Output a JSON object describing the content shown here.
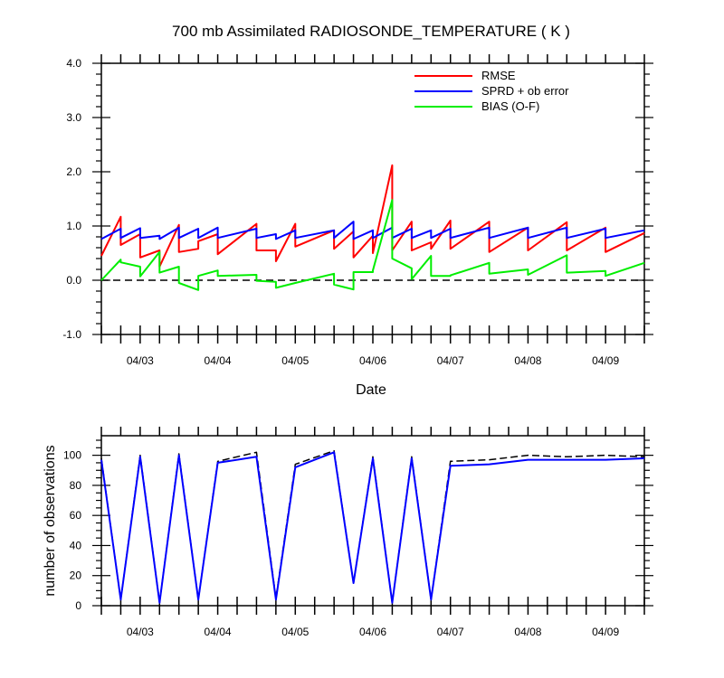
{
  "chart_data": [
    {
      "type": "line",
      "title": "700 mb Assimilated RADIOSONDE_TEMPERATURE ( K )",
      "xlabel": "Date",
      "ylabel": "",
      "ylim": [
        -1.0,
        4.0
      ],
      "xlim": [
        "04/02 12:00",
        "04/09 12:00"
      ],
      "x_tick_labels": [
        "04/03",
        "04/04",
        "04/05",
        "04/06",
        "04/07",
        "04/08",
        "04/09"
      ],
      "y_tick_labels": [
        "-1.0",
        "0.0",
        "1.0",
        "2.0",
        "3.0",
        "4.0"
      ],
      "grid": false,
      "legend": "top-right",
      "reference_line": {
        "y": 0,
        "style": "dashed",
        "color": "#000000"
      },
      "series": [
        {
          "name": "RMSE",
          "color": "#ff0000",
          "points": [
            [
              "04/02 12:00",
              0.45
            ],
            [
              "04/02 18:00",
              1.17
            ],
            [
              "04/02 18:00",
              0.65
            ],
            [
              "04/03 00:00",
              0.85
            ],
            [
              "04/03 00:00",
              0.42
            ],
            [
              "04/03 06:00",
              0.55
            ],
            [
              "04/03 06:00",
              0.25
            ],
            [
              "04/03 12:00",
              1.02
            ],
            [
              "04/03 12:00",
              0.52
            ],
            [
              "04/03 18:00",
              0.58
            ],
            [
              "04/03 18:00",
              0.72
            ],
            [
              "04/04 00:00",
              0.85
            ],
            [
              "04/04 00:00",
              0.48
            ],
            [
              "04/04 12:00",
              1.04
            ],
            [
              "04/04 12:00",
              0.55
            ],
            [
              "04/04 18:00",
              0.55
            ],
            [
              "04/04 18:00",
              0.35
            ],
            [
              "04/05 00:00",
              1.04
            ],
            [
              "04/05 00:00",
              0.62
            ],
            [
              "04/05 12:00",
              0.92
            ],
            [
              "04/05 12:00",
              0.58
            ],
            [
              "04/05 18:00",
              0.9
            ],
            [
              "04/05 18:00",
              0.42
            ],
            [
              "04/06 00:00",
              0.82
            ],
            [
              "04/06 00:00",
              0.5
            ],
            [
              "04/06 06:00",
              2.12
            ],
            [
              "04/06 06:00",
              0.55
            ],
            [
              "04/06 12:00",
              1.08
            ],
            [
              "04/06 12:00",
              0.55
            ],
            [
              "04/06 18:00",
              0.7
            ],
            [
              "04/06 18:00",
              0.58
            ],
            [
              "04/07 00:00",
              1.1
            ],
            [
              "04/07 00:00",
              0.58
            ],
            [
              "04/07 12:00",
              1.08
            ],
            [
              "04/07 12:00",
              0.52
            ],
            [
              "04/08 00:00",
              0.97
            ],
            [
              "04/08 00:00",
              0.55
            ],
            [
              "04/08 12:00",
              1.07
            ],
            [
              "04/08 12:00",
              0.55
            ],
            [
              "04/09 00:00",
              0.97
            ],
            [
              "04/09 00:00",
              0.52
            ],
            [
              "04/09 12:00",
              0.87
            ]
          ]
        },
        {
          "name": "SPRD + ob error",
          "color": "#0000ff",
          "points": [
            [
              "04/02 12:00",
              0.76
            ],
            [
              "04/02 18:00",
              0.95
            ],
            [
              "04/02 18:00",
              0.78
            ],
            [
              "04/03 00:00",
              0.96
            ],
            [
              "04/03 00:00",
              0.78
            ],
            [
              "04/03 06:00",
              0.82
            ],
            [
              "04/03 06:00",
              0.76
            ],
            [
              "04/03 12:00",
              0.97
            ],
            [
              "04/03 12:00",
              0.78
            ],
            [
              "04/03 18:00",
              0.95
            ],
            [
              "04/03 18:00",
              0.78
            ],
            [
              "04/04 00:00",
              0.97
            ],
            [
              "04/04 00:00",
              0.78
            ],
            [
              "04/04 12:00",
              0.95
            ],
            [
              "04/04 12:00",
              0.78
            ],
            [
              "04/04 18:00",
              0.85
            ],
            [
              "04/04 18:00",
              0.76
            ],
            [
              "04/05 00:00",
              0.92
            ],
            [
              "04/05 00:00",
              0.78
            ],
            [
              "04/05 12:00",
              0.92
            ],
            [
              "04/05 12:00",
              0.78
            ],
            [
              "04/05 18:00",
              1.08
            ],
            [
              "04/05 18:00",
              0.76
            ],
            [
              "04/06 00:00",
              0.92
            ],
            [
              "04/06 00:00",
              0.78
            ],
            [
              "04/06 06:00",
              0.97
            ],
            [
              "04/06 06:00",
              0.78
            ],
            [
              "04/06 12:00",
              0.95
            ],
            [
              "04/06 12:00",
              0.78
            ],
            [
              "04/06 18:00",
              0.92
            ],
            [
              "04/06 18:00",
              0.78
            ],
            [
              "04/07 00:00",
              0.95
            ],
            [
              "04/07 00:00",
              0.78
            ],
            [
              "04/07 12:00",
              0.97
            ],
            [
              "04/07 12:00",
              0.78
            ],
            [
              "04/08 00:00",
              0.97
            ],
            [
              "04/08 00:00",
              0.78
            ],
            [
              "04/08 12:00",
              0.97
            ],
            [
              "04/08 12:00",
              0.78
            ],
            [
              "04/09 00:00",
              0.95
            ],
            [
              "04/09 00:00",
              0.78
            ],
            [
              "04/09 12:00",
              0.92
            ]
          ]
        },
        {
          "name": "BIAS (O-F)",
          "color": "#00ee00",
          "points": [
            [
              "04/02 12:00",
              0.0
            ],
            [
              "04/02 18:00",
              0.38
            ],
            [
              "04/02 18:00",
              0.33
            ],
            [
              "04/03 00:00",
              0.25
            ],
            [
              "04/03 00:00",
              0.07
            ],
            [
              "04/03 06:00",
              0.52
            ],
            [
              "04/03 06:00",
              0.14
            ],
            [
              "04/03 12:00",
              0.25
            ],
            [
              "04/03 12:00",
              -0.05
            ],
            [
              "04/03 18:00",
              -0.18
            ],
            [
              "04/03 18:00",
              0.08
            ],
            [
              "04/04 00:00",
              0.18
            ],
            [
              "04/04 00:00",
              0.08
            ],
            [
              "04/04 12:00",
              0.1
            ],
            [
              "04/04 12:00",
              -0.01
            ],
            [
              "04/04 18:00",
              -0.03
            ],
            [
              "04/04 18:00",
              -0.14
            ],
            [
              "04/05 00:00",
              -0.05
            ],
            [
              "04/05 00:00",
              -0.05
            ],
            [
              "04/05 12:00",
              0.12
            ],
            [
              "04/05 12:00",
              -0.08
            ],
            [
              "04/05 18:00",
              -0.17
            ],
            [
              "04/05 18:00",
              0.15
            ],
            [
              "04/06 00:00",
              0.15
            ],
            [
              "04/06 00:00",
              0.18
            ],
            [
              "04/06 06:00",
              1.48
            ],
            [
              "04/06 06:00",
              0.4
            ],
            [
              "04/06 12:00",
              0.22
            ],
            [
              "04/06 12:00",
              0.02
            ],
            [
              "04/06 18:00",
              0.45
            ],
            [
              "04/06 18:00",
              0.08
            ],
            [
              "04/07 00:00",
              0.08
            ],
            [
              "04/07 00:00",
              0.09
            ],
            [
              "04/07 12:00",
              0.32
            ],
            [
              "04/07 12:00",
              0.12
            ],
            [
              "04/08 00:00",
              0.2
            ],
            [
              "04/08 00:00",
              0.1
            ],
            [
              "04/08 12:00",
              0.46
            ],
            [
              "04/08 12:00",
              0.14
            ],
            [
              "04/09 00:00",
              0.17
            ],
            [
              "04/09 00:00",
              0.08
            ],
            [
              "04/09 12:00",
              0.32
            ]
          ]
        }
      ]
    },
    {
      "type": "line",
      "title": "",
      "xlabel": "",
      "ylabel": "number of observations",
      "ylim": [
        0,
        113
      ],
      "xlim": [
        "04/02 12:00",
        "04/09 12:00"
      ],
      "x_tick_labels": [
        "04/03",
        "04/04",
        "04/05",
        "04/06",
        "04/07",
        "04/08",
        "04/09"
      ],
      "y_tick_labels": [
        "0",
        "20",
        "40",
        "60",
        "80",
        "100"
      ],
      "grid": false,
      "series": [
        {
          "style": "dashed",
          "color": "#000000",
          "points": [
            [
              "04/02 12:00",
              98
            ],
            [
              "04/02 18:00",
              4
            ],
            [
              "04/03 00:00",
              100
            ],
            [
              "04/03 06:00",
              2
            ],
            [
              "04/03 12:00",
              101
            ],
            [
              "04/03 18:00",
              4
            ],
            [
              "04/04 00:00",
              96
            ],
            [
              "04/04 12:00",
              102
            ],
            [
              "04/04 18:00",
              5
            ],
            [
              "04/05 00:00",
              94
            ],
            [
              "04/05 12:00",
              103
            ],
            [
              "04/05 18:00",
              15
            ],
            [
              "04/06 00:00",
              99
            ],
            [
              "04/06 06:00",
              2
            ],
            [
              "04/06 12:00",
              99
            ],
            [
              "04/06 18:00",
              4
            ],
            [
              "04/07 00:00",
              96
            ],
            [
              "04/07 12:00",
              97
            ],
            [
              "04/08 00:00",
              100
            ],
            [
              "04/08 12:00",
              99
            ],
            [
              "04/09 00:00",
              100
            ],
            [
              "04/09 12:00",
              99
            ]
          ]
        },
        {
          "style": "solid",
          "color": "#0000ff",
          "points": [
            [
              "04/02 12:00",
              97
            ],
            [
              "04/02 18:00",
              4
            ],
            [
              "04/03 00:00",
              99
            ],
            [
              "04/03 06:00",
              2
            ],
            [
              "04/03 12:00",
              100
            ],
            [
              "04/03 18:00",
              4
            ],
            [
              "04/04 00:00",
              95
            ],
            [
              "04/04 12:00",
              99
            ],
            [
              "04/04 18:00",
              4
            ],
            [
              "04/05 00:00",
              92
            ],
            [
              "04/05 12:00",
              102
            ],
            [
              "04/05 18:00",
              15
            ],
            [
              "04/06 00:00",
              98
            ],
            [
              "04/06 06:00",
              2
            ],
            [
              "04/06 12:00",
              98
            ],
            [
              "04/06 18:00",
              4
            ],
            [
              "04/07 00:00",
              93
            ],
            [
              "04/07 12:00",
              94
            ],
            [
              "04/08 00:00",
              97
            ],
            [
              "04/08 12:00",
              97
            ],
            [
              "04/09 00:00",
              97
            ],
            [
              "04/09 12:00",
              98
            ]
          ]
        }
      ]
    }
  ]
}
